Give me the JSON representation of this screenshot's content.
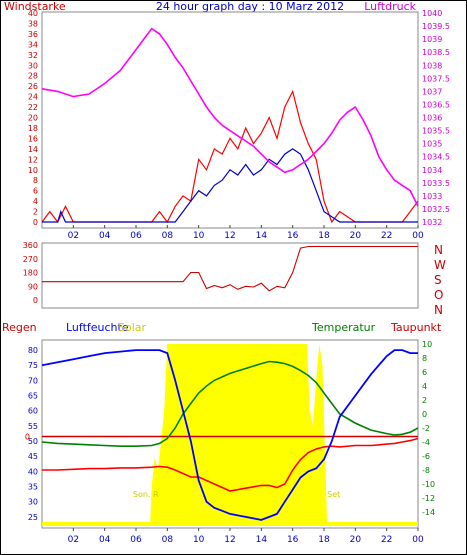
{
  "header": {
    "title": "24 hour graph day : 10 Marz 2012",
    "left_label": "Windstarke",
    "right_label": "Luftdruck"
  },
  "colors": {
    "wind": "#ff0000",
    "gust": "#0000cc",
    "pressure": "#ff00ff",
    "direction": "#cc0000",
    "humidity": "#0000ff",
    "temperature": "#008000",
    "dewpoint": "#ff0000",
    "solar": "#ffff00",
    "rain": "#cc0000",
    "axis_left_top": "#cc0000",
    "axis_right_top": "#cc00cc"
  },
  "chart_data": [
    {
      "type": "line",
      "title": "24 hour graph day : 10 Marz 2012",
      "x_ticks": [
        "02",
        "04",
        "06",
        "08",
        "10",
        "12",
        "14",
        "16",
        "18",
        "20",
        "22",
        "00"
      ],
      "xlim": [
        0,
        24
      ],
      "ylim_left": [
        0,
        40
      ],
      "ylim_right": [
        1032,
        1040
      ],
      "y_ticks_left": [
        "0",
        "2",
        "4",
        "6",
        "8",
        "10",
        "12",
        "14",
        "16",
        "18",
        "20",
        "22",
        "24",
        "26",
        "28",
        "30",
        "32",
        "34",
        "36",
        "38",
        "40"
      ],
      "y_ticks_right": [
        "1032",
        "1032.5",
        "1033",
        "1033.5",
        "1034",
        "1034.5",
        "1035",
        "1035.5",
        "1036",
        "1036.5",
        "1037",
        "1037.5",
        "1038",
        "1038.5",
        "1039",
        "1039.5",
        "1040"
      ],
      "ylabel_left": "Windstarke",
      "ylabel_right": "Luftdruck",
      "series": [
        {
          "name": "Luftdruck",
          "axis": "right",
          "x": [
            0,
            1,
            2,
            3,
            4,
            5,
            6,
            6.5,
            7,
            7.5,
            8,
            8.5,
            9,
            9.5,
            10,
            10.5,
            11,
            11.5,
            12,
            12.5,
            13,
            13.5,
            14,
            14.5,
            15,
            15.5,
            16,
            16.5,
            17,
            17.5,
            18,
            18.5,
            19,
            19.5,
            20,
            20.5,
            21,
            21.5,
            22,
            22.5,
            23,
            23.5,
            24
          ],
          "values": [
            1037.1,
            1037.0,
            1036.8,
            1036.9,
            1037.3,
            1037.8,
            1038.6,
            1039.0,
            1039.4,
            1039.2,
            1038.8,
            1038.3,
            1037.9,
            1037.4,
            1036.9,
            1036.4,
            1036.0,
            1035.7,
            1035.5,
            1035.3,
            1035.1,
            1034.9,
            1034.6,
            1034.3,
            1034.1,
            1033.9,
            1034.0,
            1034.2,
            1034.4,
            1034.7,
            1035.0,
            1035.4,
            1035.9,
            1036.2,
            1036.4,
            1035.9,
            1035.3,
            1034.5,
            1034.0,
            1033.6,
            1033.4,
            1033.2,
            1032.6
          ]
        },
        {
          "name": "Wind",
          "axis": "left",
          "x": [
            0,
            0.5,
            1,
            1.5,
            2,
            3,
            4,
            5,
            6,
            7,
            7.5,
            8,
            8.5,
            9,
            9.5,
            10,
            10.5,
            11,
            11.5,
            12,
            12.5,
            13,
            13.5,
            14,
            14.5,
            15,
            15.5,
            16,
            16.5,
            17,
            17.5,
            18,
            18.5,
            19,
            20,
            21,
            22,
            23,
            23.5,
            24
          ],
          "values": [
            0,
            2,
            0,
            3,
            0,
            0,
            0,
            0,
            0,
            0,
            2,
            0,
            3,
            5,
            4,
            12,
            10,
            14,
            13,
            16,
            14,
            18,
            15,
            17,
            20,
            16,
            22,
            25,
            19,
            15,
            12,
            4,
            0,
            2,
            0,
            0,
            0,
            0,
            2,
            4
          ]
        },
        {
          "name": "Boen",
          "axis": "left",
          "x": [
            0,
            1,
            1.2,
            1.5,
            2,
            8,
            8.5,
            9,
            9.5,
            10,
            10.5,
            11,
            11.5,
            12,
            12.5,
            13,
            13.5,
            14,
            14.5,
            15,
            15.5,
            16,
            16.5,
            17,
            17.5,
            18,
            19,
            24
          ],
          "values": [
            0,
            0,
            2,
            0,
            0,
            0,
            0,
            2,
            4,
            6,
            5,
            7,
            8,
            10,
            9,
            11,
            9,
            10,
            12,
            11,
            13,
            14,
            13,
            10,
            6,
            2,
            0,
            0
          ]
        }
      ]
    },
    {
      "type": "line",
      "x_ticks": [],
      "xlim": [
        0,
        24
      ],
      "ylim": [
        0,
        360
      ],
      "y_ticks_left": [
        "0",
        "90",
        "180",
        "270",
        "360"
      ],
      "y_ticks_right": [
        "N",
        "W",
        "S",
        "O",
        "N"
      ],
      "series": [
        {
          "name": "Windrichtung",
          "x": [
            0,
            2,
            4,
            6,
            8,
            9,
            9.5,
            10,
            10.5,
            11,
            11.5,
            12,
            12.5,
            13,
            13.5,
            14,
            14.5,
            15,
            15.5,
            16,
            16.5,
            17,
            18,
            20,
            22,
            24
          ],
          "values": [
            120,
            120,
            120,
            120,
            120,
            120,
            180,
            180,
            75,
            95,
            80,
            100,
            70,
            90,
            85,
            110,
            60,
            90,
            80,
            180,
            340,
            350,
            350,
            350,
            350,
            350
          ]
        }
      ]
    },
    {
      "type": "line",
      "x_ticks": [
        "02",
        "04",
        "06",
        "08",
        "10",
        "12",
        "14",
        "16",
        "18",
        "20",
        "22",
        "00"
      ],
      "xlim": [
        0,
        24
      ],
      "ylim_left": [
        22,
        82
      ],
      "ylim_right": [
        -16,
        10
      ],
      "y_ticks_left": [
        "25",
        "30",
        "35",
        "40",
        "45",
        "50",
        "55",
        "60",
        "65",
        "70",
        "75",
        "80"
      ],
      "y_ticks_right": [
        "-14",
        "-12",
        "-10",
        "-8",
        "-6",
        "-4",
        "-2",
        "0",
        "2",
        "4",
        "6",
        "8",
        "10"
      ],
      "rain_baseline_label": "0",
      "legend": [
        "Regen",
        "Luftfeuchte",
        "Solar",
        "Temperatur",
        "Taupunkt"
      ],
      "annotations": [
        "Son. R",
        "Set"
      ],
      "series": [
        {
          "name": "Luftfeuchte",
          "axis": "left",
          "x": [
            0,
            1,
            2,
            3,
            4,
            5,
            6,
            7,
            7.5,
            8,
            8.5,
            9,
            9.5,
            10,
            10.5,
            11,
            11.5,
            12,
            13,
            14,
            14.5,
            15,
            15.5,
            16,
            16.5,
            17,
            17.5,
            18,
            18.5,
            19,
            20,
            21,
            22,
            22.5,
            23,
            23.5,
            24
          ],
          "values": [
            75,
            76,
            77,
            78,
            79,
            79.5,
            80,
            80,
            80,
            79,
            70,
            60,
            50,
            37,
            30,
            28,
            27,
            26,
            25,
            24,
            25,
            26,
            30,
            34,
            38,
            40,
            41,
            44,
            50,
            58,
            65,
            72,
            78,
            80,
            80,
            79,
            79
          ]
        },
        {
          "name": "Temperatur",
          "axis": "right",
          "x": [
            0,
            1,
            2,
            3,
            4,
            5,
            6,
            7,
            7.5,
            8,
            8.5,
            9,
            9.5,
            10,
            10.5,
            11,
            11.5,
            12,
            13,
            14,
            14.5,
            15,
            15.5,
            16,
            16.5,
            17,
            17.5,
            18,
            18.5,
            19,
            20,
            21,
            22,
            22.5,
            23,
            23.5,
            24
          ],
          "values": [
            -4,
            -4.2,
            -4.3,
            -4.4,
            -4.5,
            -4.6,
            -4.6,
            -4.5,
            -4.2,
            -3.5,
            -2,
            0,
            1.5,
            3,
            4,
            4.8,
            5.3,
            5.8,
            6.5,
            7.2,
            7.5,
            7.4,
            7.2,
            6.8,
            6.2,
            5.5,
            4.5,
            3,
            1.5,
            0,
            -1.3,
            -2.3,
            -2.8,
            -3,
            -2.9,
            -2.6,
            -2
          ]
        },
        {
          "name": "Taupunkt",
          "axis": "right",
          "x": [
            0,
            1,
            2,
            3,
            4,
            5,
            6,
            7,
            7.5,
            8,
            8.5,
            9,
            9.5,
            10,
            10.5,
            11,
            11.5,
            12,
            13,
            14,
            14.5,
            15,
            15.5,
            16,
            16.5,
            17,
            17.5,
            18,
            18.5,
            19,
            20,
            21,
            22,
            22.5,
            23,
            23.5,
            24
          ],
          "values": [
            -8,
            -8,
            -7.9,
            -7.8,
            -7.8,
            -7.7,
            -7.7,
            -7.6,
            -7.5,
            -7.6,
            -8,
            -8.5,
            -9,
            -9,
            -9.5,
            -10,
            -10.5,
            -11,
            -10.6,
            -10.2,
            -10.2,
            -10.5,
            -10,
            -8,
            -6.5,
            -5.5,
            -5,
            -4.7,
            -4.6,
            -4.7,
            -4.5,
            -4.5,
            -4.3,
            -4.2,
            -4,
            -3.8,
            -3.5
          ]
        },
        {
          "name": "Solar",
          "axis": "left",
          "x": [
            6.9,
            7.0,
            7.2,
            7.4,
            7.6,
            7.8,
            8.0,
            8.1,
            8.2,
            8.3,
            16.8,
            16.9,
            17.1,
            17.3,
            17.5,
            17.7,
            17.9,
            18.1,
            18.2
          ],
          "values": [
            22,
            35,
            45,
            40,
            50,
            60,
            82,
            82,
            82,
            82,
            82,
            82,
            60,
            55,
            70,
            82,
            75,
            40,
            22
          ]
        }
      ]
    }
  ]
}
